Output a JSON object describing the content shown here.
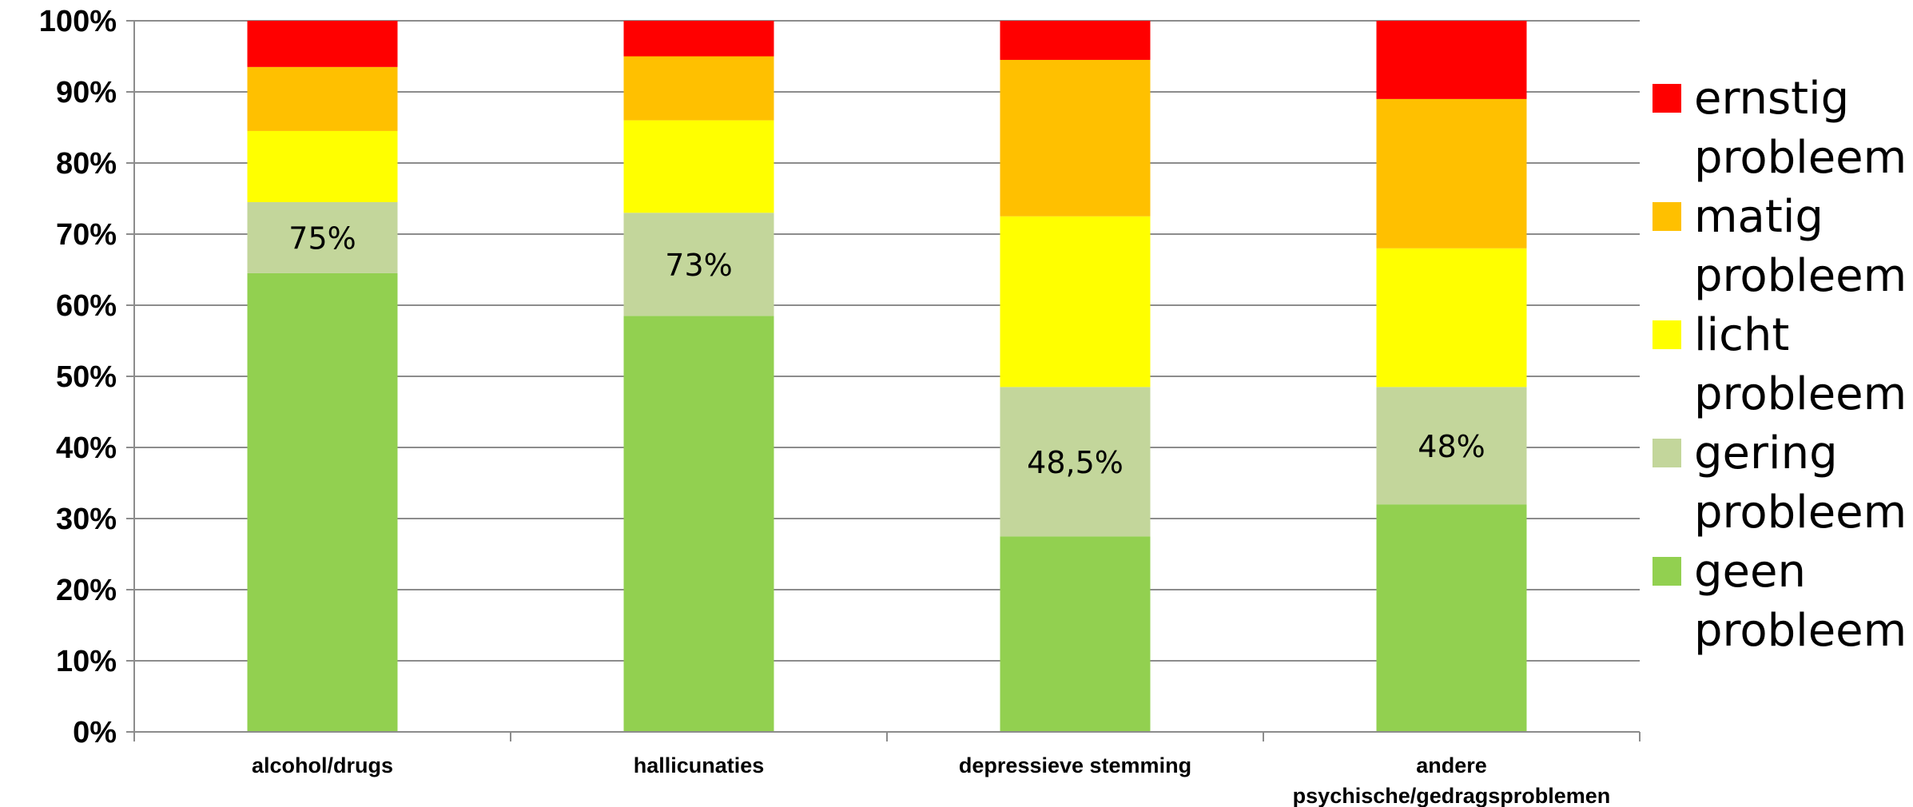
{
  "chart_data": {
    "type": "bar",
    "stacked": true,
    "categories": [
      "alcohol/drugs",
      "hallicunaties",
      "depressieve stemming",
      "andere psychische/gedragsproblemen"
    ],
    "yticks": [
      "0%",
      "10%",
      "20%",
      "30%",
      "40%",
      "50%",
      "60%",
      "70%",
      "80%",
      "90%",
      "100%"
    ],
    "ylim": [
      0,
      100
    ],
    "grid": true,
    "legend_position": "right",
    "series": [
      {
        "name": "geen probleem",
        "color": "#92d050",
        "values": [
          64.5,
          58.5,
          27.5,
          32.0
        ]
      },
      {
        "name": "gering probleem",
        "color": "#c3d69b",
        "values": [
          10.0,
          14.5,
          21.0,
          16.5
        ]
      },
      {
        "name": "licht probleem",
        "color": "#ffff00",
        "values": [
          10.0,
          13.0,
          24.0,
          19.5
        ]
      },
      {
        "name": "matig probleem",
        "color": "#ffc000",
        "values": [
          9.0,
          9.0,
          22.0,
          21.0
        ]
      },
      {
        "name": "ernstig probleem",
        "color": "#ff0000",
        "values": [
          6.5,
          5.0,
          5.5,
          11.0
        ]
      }
    ],
    "annotations": [
      "75%",
      "73%",
      "48,5%",
      "48%"
    ]
  }
}
